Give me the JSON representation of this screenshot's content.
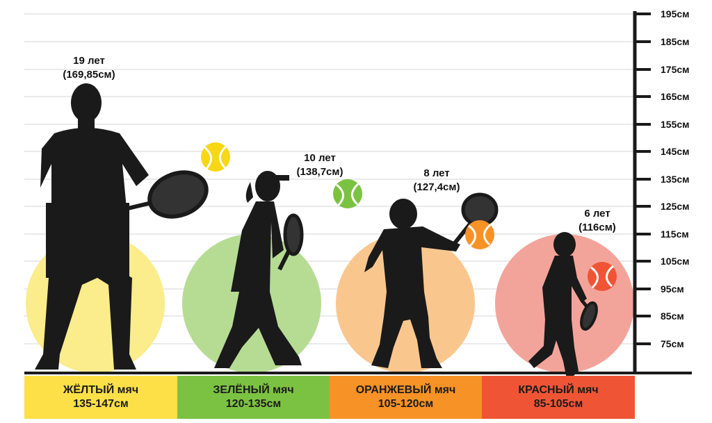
{
  "scale": {
    "unit": "см",
    "ticks": [
      "195см",
      "185см",
      "175см",
      "165см",
      "155см",
      "145см",
      "135см",
      "125см",
      "115см",
      "105см",
      "95см",
      "85см",
      "75см"
    ]
  },
  "categories": [
    {
      "ball": "ЖЁЛТЫЙ мяч",
      "range": "135-147см",
      "color": "#fde047",
      "circle": "#fbec8c"
    },
    {
      "ball": "ЗЕЛЁНЫЙ мяч",
      "range": "120-135см",
      "color": "#7cc242",
      "circle": "#b6dc94"
    },
    {
      "ball": "ОРАНЖЕВЫЙ мяч",
      "range": "105-120см",
      "color": "#f79226",
      "circle": "#f9c78e"
    },
    {
      "ball": "КРАСНЫЙ мяч",
      "range": "85-105см",
      "color": "#ef5535",
      "circle": "#f3a49a"
    }
  ],
  "players": [
    {
      "age": "19 лет",
      "height": "(169,85см)"
    },
    {
      "age": "10 лет",
      "height": "(138,7см)"
    },
    {
      "age": "8 лет",
      "height": "(127,4см)"
    },
    {
      "age": "6 лет",
      "height": "(116см)"
    }
  ],
  "icons": [
    "tennis-ball-icon",
    "player-silhouette-icon",
    "racket-icon"
  ]
}
